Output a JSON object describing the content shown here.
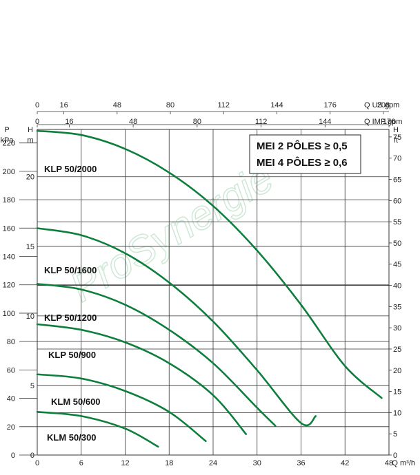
{
  "chart_data": {
    "type": "line",
    "title": "",
    "xlabel": "Q m³/h",
    "xlim": [
      0,
      48
    ],
    "x_ticks": [
      "0",
      "6",
      "12",
      "18",
      "24",
      "30",
      "36",
      "42",
      "48"
    ],
    "ylabel_m": "m",
    "ylabel_m_sym": "H",
    "ylim_m": [
      0,
      23.4
    ],
    "m_ticks": [
      "0",
      "5",
      "10",
      "15",
      "20"
    ],
    "ylabel_kpa_sym": "P",
    "ylabel_kpa": "kPa",
    "kpa_ticks": [
      "0",
      "20",
      "40",
      "60",
      "80",
      "100",
      "120",
      "140",
      "160",
      "180",
      "200",
      "220"
    ],
    "ylabel_ft_sym": "H",
    "ylabel_ft": "ft",
    "ft_ticks": [
      "0",
      "5",
      "10",
      "15",
      "20",
      "25",
      "30",
      "35",
      "40",
      "45",
      "50",
      "55",
      "60",
      "65",
      "70",
      "75"
    ],
    "top_axis_us": {
      "label": "Q US gpm",
      "ticks": [
        "0",
        "16",
        "48",
        "80",
        "112",
        "144",
        "176",
        "208"
      ]
    },
    "top_axis_imp": {
      "label": "Q IMP gpm",
      "ticks": [
        "0",
        "16",
        "48",
        "80",
        "112",
        "144",
        "176"
      ]
    },
    "annotation_lines": [
      "MEI 2 PÔLES ≥ 0,5",
      "MEI 4 PÔLES ≥ 0,6"
    ],
    "watermark": "ProSynergie",
    "series": [
      {
        "name": "KLP 50/2000",
        "x": [
          0,
          6,
          12,
          18,
          24,
          30,
          36,
          42,
          47
        ],
        "y": [
          23.3,
          23.0,
          22.0,
          20.3,
          17.9,
          14.7,
          10.8,
          6.4,
          4.1
        ]
      },
      {
        "name": "KLP 50/1600",
        "x": [
          0,
          6,
          12,
          18,
          24,
          30,
          36,
          38
        ],
        "y": [
          16.3,
          15.8,
          14.5,
          12.4,
          9.6,
          6.1,
          2.3,
          2.8
        ]
      },
      {
        "name": "KLP 50/1200",
        "x": [
          0,
          6,
          12,
          18,
          24,
          30,
          32.5
        ],
        "y": [
          12.3,
          11.9,
          10.8,
          9.0,
          6.6,
          3.4,
          2.1
        ]
      },
      {
        "name": "KLP 50/900",
        "x": [
          0,
          6,
          12,
          18,
          24,
          28.5
        ],
        "y": [
          9.4,
          9.0,
          8.1,
          6.6,
          4.3,
          1.5
        ]
      },
      {
        "name": "KLM 50/600",
        "x": [
          0,
          6,
          12,
          18,
          23
        ],
        "y": [
          5.8,
          5.5,
          4.6,
          3.1,
          1.0
        ]
      },
      {
        "name": "KLM 50/300",
        "x": [
          0,
          6,
          12,
          16.5
        ],
        "y": [
          3.1,
          2.8,
          1.9,
          0.6
        ]
      }
    ],
    "grid": true
  },
  "colors": {
    "curve": "#0e7e3c",
    "grid": "#333333",
    "watermark": "#cfe8d6"
  }
}
